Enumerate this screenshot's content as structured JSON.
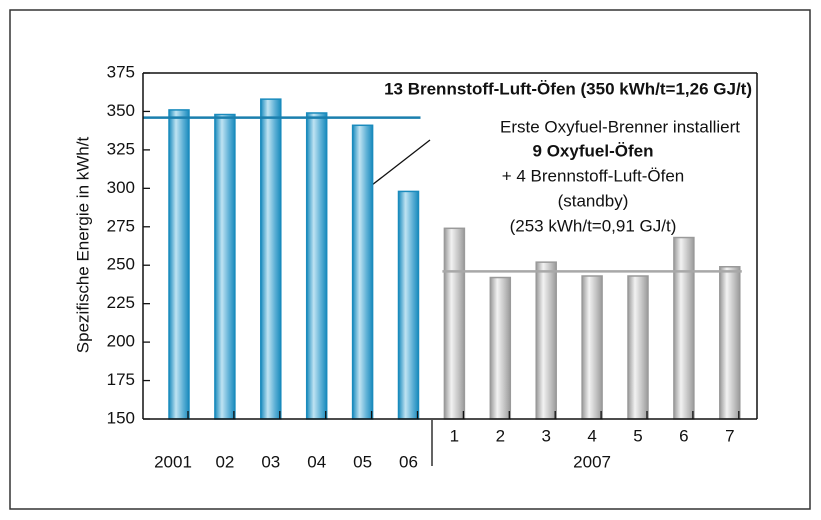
{
  "chart_data": {
    "type": "bar",
    "y_label": "Spezifische Energie in kWh/t",
    "categories": [
      "2001",
      "02",
      "03",
      "04",
      "05",
      "06",
      "1",
      "2",
      "3",
      "4",
      "5",
      "6",
      "7"
    ],
    "group_label": "2007",
    "values": [
      351,
      348,
      358,
      349,
      341,
      298,
      274,
      242,
      252,
      243,
      243,
      268,
      249
    ],
    "colors": [
      "#1a8bbd",
      "#1a8bbd",
      "#1a8bbd",
      "#1a8bbd",
      "#1a8bbd",
      "#1a8bbd",
      "#9a9a9a",
      "#9a9a9a",
      "#9a9a9a",
      "#9a9a9a",
      "#9a9a9a",
      "#9a9a9a",
      "#9a9a9a"
    ],
    "ylim": [
      150,
      375
    ],
    "yticks": [
      150,
      175,
      200,
      225,
      250,
      275,
      300,
      325,
      350,
      375
    ],
    "reference_lines": [
      {
        "value": 346,
        "color": "#1a7fae"
      },
      {
        "value": 246,
        "color": "#a8a8a8"
      }
    ],
    "annotations": [
      "13 Brennstoff-Luft-Öfen (350 kWh/t=1,26 GJ/t)",
      "Erste Oxyfuel-Brenner installiert",
      "9 Oxyfuel-Öfen",
      "+ 4 Brennstoff-Luft-Öfen",
      "(standby)",
      "(253 kWh/t=0,91 GJ/t)"
    ]
  }
}
